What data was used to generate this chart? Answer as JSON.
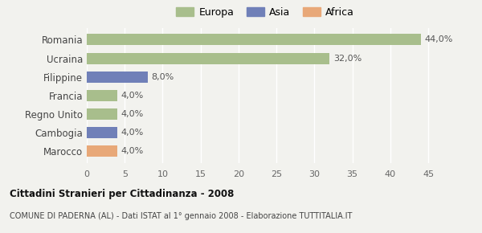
{
  "categories": [
    "Romania",
    "Ucraina",
    "Filippine",
    "Francia",
    "Regno Unito",
    "Cambogia",
    "Marocco"
  ],
  "values": [
    44.0,
    32.0,
    8.0,
    4.0,
    4.0,
    4.0,
    4.0
  ],
  "labels": [
    "44,0%",
    "32,0%",
    "8,0%",
    "4,0%",
    "4,0%",
    "4,0%",
    "4,0%"
  ],
  "colors": [
    "#a8be8c",
    "#a8be8c",
    "#7080b8",
    "#a8be8c",
    "#a8be8c",
    "#7080b8",
    "#e8a878"
  ],
  "legend_labels": [
    "Europa",
    "Asia",
    "Africa"
  ],
  "legend_colors": [
    "#a8be8c",
    "#7080b8",
    "#e8a878"
  ],
  "title": "Cittadini Stranieri per Cittadinanza - 2008",
  "subtitle": "COMUNE DI PADERNA (AL) - Dati ISTAT al 1° gennaio 2008 - Elaborazione TUTTITALIA.IT",
  "xlim": [
    0,
    47
  ],
  "xticks": [
    0,
    5,
    10,
    15,
    20,
    25,
    30,
    35,
    40,
    45
  ],
  "bg_color": "#f2f2ee",
  "grid_color": "#ffffff"
}
